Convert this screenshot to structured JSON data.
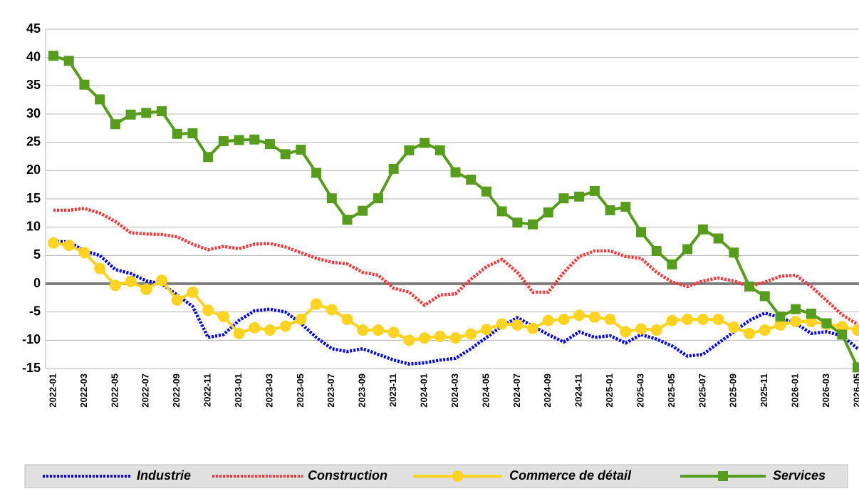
{
  "chart_data": {
    "type": "line",
    "categories": [
      "2022-01",
      null,
      "2022-03",
      null,
      "2022-05",
      null,
      "2022-07",
      null,
      "2022-09",
      null,
      "2022-11",
      null,
      "2023-01",
      null,
      "2023-03",
      null,
      "2023-05",
      null,
      "2023-07",
      null,
      "2023-09",
      null,
      "2023-11",
      null,
      "2024-01",
      null,
      "2024-03",
      null,
      "2024-05",
      null,
      "2024-07",
      null,
      "2024-09",
      null,
      "2024-11",
      null,
      "2025-01",
      null,
      "2025-03",
      null,
      "2025-05",
      null,
      "2025-07",
      null,
      "2025-09",
      null,
      "2025-11",
      null,
      "2026-01",
      null,
      "2026-03",
      null,
      "2026-05"
    ],
    "series": [
      {
        "name": "Industrie",
        "color": "#0000ff",
        "style": "dotted",
        "values": [
          7.5,
          7.4,
          5.8,
          5.0,
          2.5,
          1.8,
          0.5,
          0.0,
          -2.0,
          -4.0,
          -9.5,
          -9.0,
          -6.5,
          -4.8,
          -4.5,
          -5.0,
          -7.0,
          -9.5,
          -11.5,
          -12.0,
          -11.5,
          -12.5,
          -13.5,
          -14.2,
          -14.0,
          -13.5,
          -13.2,
          -11.5,
          -9.5,
          -7.5,
          -6.0,
          -7.5,
          -9.0,
          -10.3,
          -8.5,
          -9.5,
          -9.2,
          -10.5,
          -9.0,
          -9.8,
          -11.0,
          -12.8,
          -12.5,
          -10.5,
          -8.5,
          -6.5,
          -5.2,
          -6.0,
          -7.0,
          -8.8,
          -8.5,
          -9.2,
          -11.5
        ]
      },
      {
        "name": "Construction",
        "color": "#ff3333",
        "style": "dotted",
        "values": [
          13.0,
          13.0,
          13.3,
          12.5,
          11.0,
          9.0,
          8.8,
          8.7,
          8.3,
          7.0,
          6.0,
          6.6,
          6.2,
          7.0,
          7.1,
          6.5,
          5.5,
          4.5,
          3.8,
          3.5,
          2.0,
          1.5,
          -0.8,
          -1.5,
          -3.8,
          -2.0,
          -1.8,
          0.8,
          3.0,
          4.3,
          2.0,
          -1.5,
          -1.5,
          2.0,
          4.8,
          5.8,
          5.8,
          4.8,
          4.5,
          2.0,
          0.3,
          -0.5,
          0.5,
          1.0,
          0.5,
          -0.5,
          0.3,
          1.3,
          1.5,
          -0.5,
          -3.0,
          -5.5,
          -7.2
        ]
      },
      {
        "name": "Commerce de détail",
        "color": "#ffd320",
        "style": "solid",
        "marker": "circle",
        "values": [
          7.2,
          6.8,
          5.5,
          2.7,
          -0.3,
          0.4,
          -1.0,
          0.6,
          -2.9,
          -1.5,
          -4.7,
          -5.8,
          -8.8,
          -7.8,
          -8.2,
          -7.5,
          -6.3,
          -3.6,
          -4.6,
          -6.3,
          -8.2,
          -8.2,
          -8.6,
          -10.0,
          -9.6,
          -9.3,
          -9.6,
          -8.9,
          -8.1,
          -7.1,
          -7.3,
          -7.9,
          -6.5,
          -6.3,
          -5.6,
          -5.9,
          -6.3,
          -8.5,
          -8.0,
          -8.2,
          -6.5,
          -6.3,
          -6.3,
          -6.3,
          -7.7,
          -8.8,
          -8.2,
          -7.3,
          -6.7,
          -6.7,
          -7.2,
          -7.6,
          -8.2
        ]
      },
      {
        "name": "Services",
        "color": "#579d1c",
        "style": "solid",
        "marker": "square",
        "values": [
          40.3,
          39.4,
          35.2,
          32.6,
          28.2,
          29.9,
          30.2,
          30.5,
          26.5,
          26.6,
          22.4,
          25.2,
          25.4,
          25.5,
          24.7,
          22.9,
          23.7,
          19.6,
          15.1,
          11.3,
          12.9,
          15.1,
          20.3,
          23.6,
          24.9,
          23.6,
          19.7,
          18.4,
          16.3,
          12.8,
          10.8,
          10.5,
          12.6,
          15.1,
          15.4,
          16.4,
          13.0,
          13.6,
          9.1,
          5.8,
          3.4,
          6.1,
          9.6,
          8.0,
          5.5,
          -0.5,
          -2.2,
          -5.8,
          -4.5,
          -5.3,
          -7.0,
          -9.0,
          -14.8
        ]
      }
    ],
    "ylim": [
      -15,
      45
    ],
    "yticks": [
      -15,
      -10,
      -5,
      0,
      5,
      10,
      15,
      20,
      25,
      30,
      35,
      40,
      45
    ],
    "grid": true,
    "legend": "bottom"
  }
}
